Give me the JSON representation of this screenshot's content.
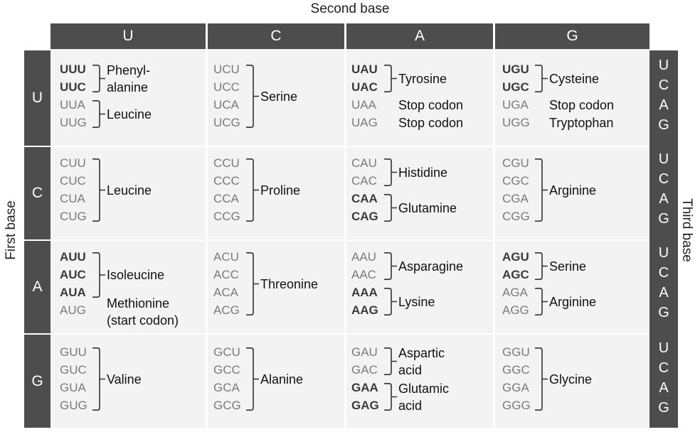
{
  "titles": {
    "second": "Second base",
    "first": "First base",
    "third": "Third base"
  },
  "columns": [
    "U",
    "C",
    "A",
    "G"
  ],
  "rows": [
    "U",
    "C",
    "A",
    "G"
  ],
  "third_base": [
    "U",
    "C",
    "A",
    "G"
  ],
  "cells": [
    [
      {
        "codons": [
          {
            "t": "UUU",
            "b": true
          },
          {
            "t": "UUC",
            "b": true
          },
          {
            "t": "UUA",
            "b": false
          },
          {
            "t": "UUG",
            "b": false
          }
        ],
        "groups": [
          {
            "span": [
              0,
              1
            ],
            "label": [
              "Phenyl-",
              "alanine"
            ],
            "bracket": true
          },
          {
            "span": [
              2,
              3
            ],
            "label": [
              "Leucine"
            ],
            "bracket": true
          }
        ]
      },
      {
        "codons": [
          {
            "t": "UCU",
            "b": false
          },
          {
            "t": "UCC",
            "b": false
          },
          {
            "t": "UCA",
            "b": false
          },
          {
            "t": "UCG",
            "b": false
          }
        ],
        "groups": [
          {
            "span": [
              0,
              3
            ],
            "label": [
              "Serine"
            ],
            "bracket": true
          }
        ]
      },
      {
        "codons": [
          {
            "t": "UAU",
            "b": true
          },
          {
            "t": "UAC",
            "b": true
          },
          {
            "t": "UAA",
            "b": false
          },
          {
            "t": "UAG",
            "b": false
          }
        ],
        "groups": [
          {
            "span": [
              0,
              1
            ],
            "label": [
              "Tyrosine"
            ],
            "bracket": true
          },
          {
            "span": [
              2,
              2
            ],
            "label": [
              "Stop codon"
            ],
            "bracket": false
          },
          {
            "span": [
              3,
              3
            ],
            "label": [
              "Stop codon"
            ],
            "bracket": false
          }
        ]
      },
      {
        "codons": [
          {
            "t": "UGU",
            "b": true
          },
          {
            "t": "UGC",
            "b": true
          },
          {
            "t": "UGA",
            "b": false
          },
          {
            "t": "UGG",
            "b": false
          }
        ],
        "groups": [
          {
            "span": [
              0,
              1
            ],
            "label": [
              "Cysteine"
            ],
            "bracket": true
          },
          {
            "span": [
              2,
              2
            ],
            "label": [
              "Stop codon"
            ],
            "bracket": false
          },
          {
            "span": [
              3,
              3
            ],
            "label": [
              "Tryptophan"
            ],
            "bracket": false
          }
        ]
      }
    ],
    [
      {
        "codons": [
          {
            "t": "CUU",
            "b": false
          },
          {
            "t": "CUC",
            "b": false
          },
          {
            "t": "CUA",
            "b": false
          },
          {
            "t": "CUG",
            "b": false
          }
        ],
        "groups": [
          {
            "span": [
              0,
              3
            ],
            "label": [
              "Leucine"
            ],
            "bracket": true
          }
        ]
      },
      {
        "codons": [
          {
            "t": "CCU",
            "b": false
          },
          {
            "t": "CCC",
            "b": false
          },
          {
            "t": "CCA",
            "b": false
          },
          {
            "t": "CCG",
            "b": false
          }
        ],
        "groups": [
          {
            "span": [
              0,
              3
            ],
            "label": [
              "Proline"
            ],
            "bracket": true
          }
        ]
      },
      {
        "codons": [
          {
            "t": "CAU",
            "b": false
          },
          {
            "t": "CAC",
            "b": false
          },
          {
            "t": "CAA",
            "b": true
          },
          {
            "t": "CAG",
            "b": true
          }
        ],
        "groups": [
          {
            "span": [
              0,
              1
            ],
            "label": [
              "Histidine"
            ],
            "bracket": true
          },
          {
            "span": [
              2,
              3
            ],
            "label": [
              "Glutamine"
            ],
            "bracket": true
          }
        ]
      },
      {
        "codons": [
          {
            "t": "CGU",
            "b": false
          },
          {
            "t": "CGC",
            "b": false
          },
          {
            "t": "CGA",
            "b": false
          },
          {
            "t": "CGG",
            "b": false
          }
        ],
        "groups": [
          {
            "span": [
              0,
              3
            ],
            "label": [
              "Arginine"
            ],
            "bracket": true
          }
        ]
      }
    ],
    [
      {
        "codons": [
          {
            "t": "AUU",
            "b": true
          },
          {
            "t": "AUC",
            "b": true
          },
          {
            "t": "AUA",
            "b": true
          },
          {
            "t": "AUG",
            "b": false
          }
        ],
        "groups": [
          {
            "span": [
              0,
              2
            ],
            "label": [
              "Isoleucine"
            ],
            "bracket": true
          },
          {
            "span": [
              3,
              3
            ],
            "label": [
              "Methionine",
              "(start codon)"
            ],
            "bracket": false
          }
        ]
      },
      {
        "codons": [
          {
            "t": "ACU",
            "b": false
          },
          {
            "t": "ACC",
            "b": false
          },
          {
            "t": "ACA",
            "b": false
          },
          {
            "t": "ACG",
            "b": false
          }
        ],
        "groups": [
          {
            "span": [
              0,
              3
            ],
            "label": [
              "Threonine"
            ],
            "bracket": true
          }
        ]
      },
      {
        "codons": [
          {
            "t": "AAU",
            "b": false
          },
          {
            "t": "AAC",
            "b": false
          },
          {
            "t": "AAA",
            "b": true
          },
          {
            "t": "AAG",
            "b": true
          }
        ],
        "groups": [
          {
            "span": [
              0,
              1
            ],
            "label": [
              "Asparagine"
            ],
            "bracket": true
          },
          {
            "span": [
              2,
              3
            ],
            "label": [
              "Lysine"
            ],
            "bracket": true
          }
        ]
      },
      {
        "codons": [
          {
            "t": "AGU",
            "b": true
          },
          {
            "t": "AGC",
            "b": true
          },
          {
            "t": "AGA",
            "b": false
          },
          {
            "t": "AGG",
            "b": false
          }
        ],
        "groups": [
          {
            "span": [
              0,
              1
            ],
            "label": [
              "Serine"
            ],
            "bracket": true
          },
          {
            "span": [
              2,
              3
            ],
            "label": [
              "Arginine"
            ],
            "bracket": true
          }
        ]
      }
    ],
    [
      {
        "codons": [
          {
            "t": "GUU",
            "b": false
          },
          {
            "t": "GUC",
            "b": false
          },
          {
            "t": "GUA",
            "b": false
          },
          {
            "t": "GUG",
            "b": false
          }
        ],
        "groups": [
          {
            "span": [
              0,
              3
            ],
            "label": [
              "Valine"
            ],
            "bracket": true
          }
        ]
      },
      {
        "codons": [
          {
            "t": "GCU",
            "b": false
          },
          {
            "t": "GCC",
            "b": false
          },
          {
            "t": "GCA",
            "b": false
          },
          {
            "t": "GCG",
            "b": false
          }
        ],
        "groups": [
          {
            "span": [
              0,
              3
            ],
            "label": [
              "Alanine"
            ],
            "bracket": true
          }
        ]
      },
      {
        "codons": [
          {
            "t": "GAU",
            "b": false
          },
          {
            "t": "GAC",
            "b": false
          },
          {
            "t": "GAA",
            "b": true
          },
          {
            "t": "GAG",
            "b": true
          }
        ],
        "groups": [
          {
            "span": [
              0,
              1
            ],
            "label": [
              "Aspartic",
              "acid"
            ],
            "bracket": true
          },
          {
            "span": [
              2,
              3
            ],
            "label": [
              "Glutamic",
              "acid"
            ],
            "bracket": true
          }
        ]
      },
      {
        "codons": [
          {
            "t": "GGU",
            "b": false
          },
          {
            "t": "GGC",
            "b": false
          },
          {
            "t": "GGA",
            "b": false
          },
          {
            "t": "GGG",
            "b": false
          }
        ],
        "groups": [
          {
            "span": [
              0,
              3
            ],
            "label": [
              "Glycine"
            ],
            "bracket": true
          }
        ]
      }
    ]
  ]
}
